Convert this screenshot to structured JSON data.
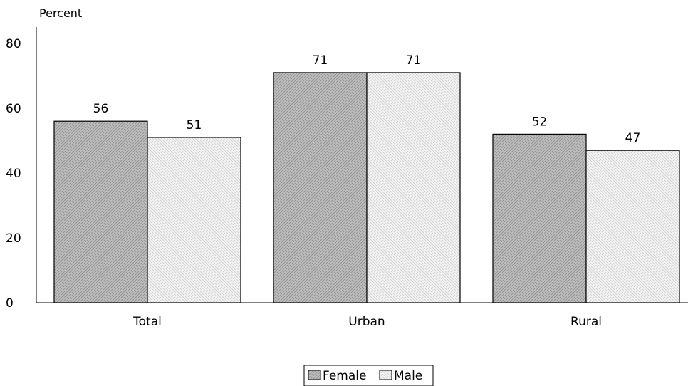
{
  "chart_data": {
    "type": "bar",
    "title": "",
    "ylabel": "Percent",
    "xlabel": "",
    "ylim": [
      0,
      80
    ],
    "yticks": [
      0,
      20,
      40,
      60,
      80
    ],
    "categories": [
      "Total",
      "Urban",
      "Rural"
    ],
    "series": [
      {
        "name": "Female",
        "values": [
          56,
          71,
          52
        ],
        "color": "#bdbdbd"
      },
      {
        "name": "Male",
        "values": [
          51,
          71,
          47
        ],
        "color": "#eeeeee"
      }
    ],
    "grid": false,
    "legend": "bottom-center"
  }
}
